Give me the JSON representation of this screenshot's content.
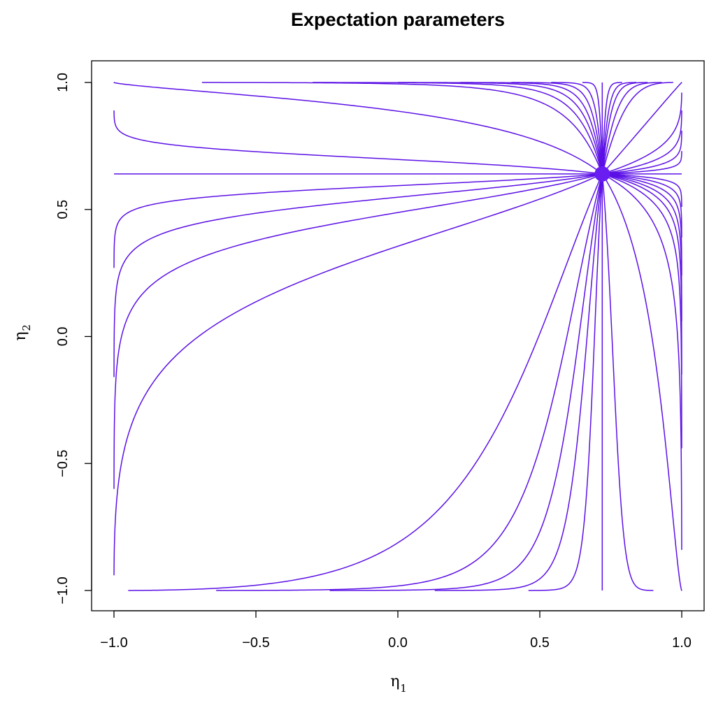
{
  "chart_data": {
    "type": "line",
    "title": "Expectation parameters",
    "xlabel": "η",
    "xlabel_sub": "1",
    "ylabel": "η",
    "ylabel_sub": "2",
    "xlim": [
      -1.0,
      1.0
    ],
    "ylim": [
      -1.0,
      1.0
    ],
    "x_ticks": [
      -1.0,
      -0.5,
      0.0,
      0.5,
      1.0
    ],
    "x_tick_labels": [
      "−1.0",
      "−0.5",
      "0.0",
      "0.5",
      "1.0"
    ],
    "y_ticks": [
      -1.0,
      -0.5,
      0.0,
      0.5,
      1.0
    ],
    "y_tick_labels": [
      "−1.0",
      "−0.5",
      "0.0",
      "0.5",
      "1.0"
    ],
    "grid": false,
    "line_color": "#5b10e6",
    "point_color": "#6a1df0",
    "focal_point": {
      "x": 0.72,
      "y": 0.64
    },
    "curve_endpoints": [
      {
        "x": -1.0,
        "y": 1.0
      },
      {
        "x": -1.0,
        "y": 0.89
      },
      {
        "x": -1.0,
        "y": 0.64
      },
      {
        "x": -1.0,
        "y": 0.27
      },
      {
        "x": -1.0,
        "y": -0.16
      },
      {
        "x": -1.0,
        "y": -0.6
      },
      {
        "x": -1.0,
        "y": -0.94
      },
      {
        "x": -0.95,
        "y": -1.0
      },
      {
        "x": -0.64,
        "y": -1.0
      },
      {
        "x": -0.24,
        "y": -1.0
      },
      {
        "x": 0.13,
        "y": -1.0
      },
      {
        "x": 0.46,
        "y": -1.0
      },
      {
        "x": 0.72,
        "y": -1.0
      },
      {
        "x": 0.9,
        "y": -1.0
      },
      {
        "x": 1.0,
        "y": -1.0
      },
      {
        "x": 1.0,
        "y": -0.84
      },
      {
        "x": 1.0,
        "y": -0.44
      },
      {
        "x": 1.0,
        "y": -0.15
      },
      {
        "x": 1.0,
        "y": 0.06
      },
      {
        "x": 1.0,
        "y": 0.24
      },
      {
        "x": 1.0,
        "y": 0.39
      },
      {
        "x": 1.0,
        "y": 0.51
      },
      {
        "x": 1.0,
        "y": 0.64
      },
      {
        "x": 1.0,
        "y": 0.73
      },
      {
        "x": 1.0,
        "y": 0.81
      },
      {
        "x": 1.0,
        "y": 0.89
      },
      {
        "x": 1.0,
        "y": 0.96
      },
      {
        "x": 1.0,
        "y": 1.0
      },
      {
        "x": 0.97,
        "y": 1.0
      },
      {
        "x": 0.93,
        "y": 1.0
      },
      {
        "x": 0.88,
        "y": 1.0
      },
      {
        "x": 0.84,
        "y": 1.0
      },
      {
        "x": 0.79,
        "y": 1.0
      },
      {
        "x": 0.72,
        "y": 1.0
      },
      {
        "x": 0.65,
        "y": 1.0
      },
      {
        "x": 0.54,
        "y": 1.0
      },
      {
        "x": 0.4,
        "y": 1.0
      },
      {
        "x": 0.22,
        "y": 1.0
      },
      {
        "x": 0.0,
        "y": 1.0
      },
      {
        "x": -0.3,
        "y": 1.0
      },
      {
        "x": -0.69,
        "y": 1.0
      }
    ]
  }
}
